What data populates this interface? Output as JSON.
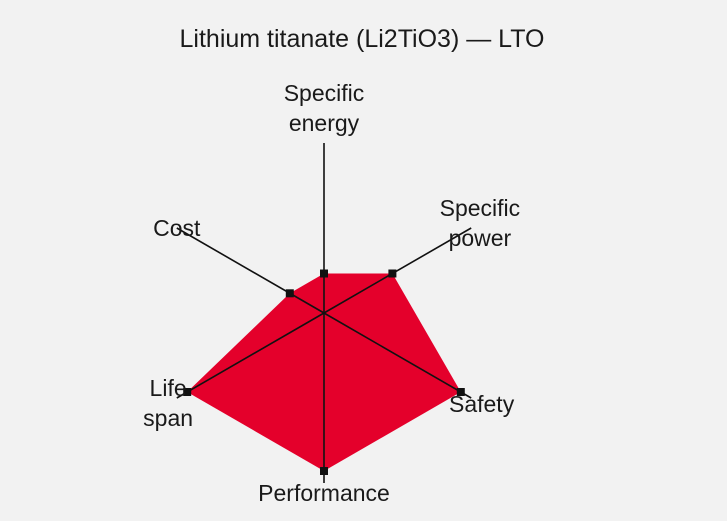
{
  "chart_data": {
    "type": "radar",
    "title": "Lithium titanate (Li2TiO3) — LTO",
    "axes": [
      {
        "key": "specific_energy",
        "label_lines": [
          "Specific",
          "energy"
        ],
        "value": 1
      },
      {
        "key": "specific_power",
        "label_lines": [
          "Specific",
          "power"
        ],
        "value": 2
      },
      {
        "key": "safety",
        "label_lines": [
          "Safety"
        ],
        "value": 4
      },
      {
        "key": "performance",
        "label_lines": [
          "Performance"
        ],
        "value": 4
      },
      {
        "key": "life_span",
        "label_lines": [
          "Life",
          "span"
        ],
        "value": 4
      },
      {
        "key": "cost",
        "label_lines": [
          "Cost"
        ],
        "value": 1
      }
    ],
    "scale_max": 4,
    "grid": false,
    "colors": {
      "fill": "#e4002b",
      "axis": "#111111",
      "marker": "#111111",
      "background": "#f2f2f2"
    }
  }
}
